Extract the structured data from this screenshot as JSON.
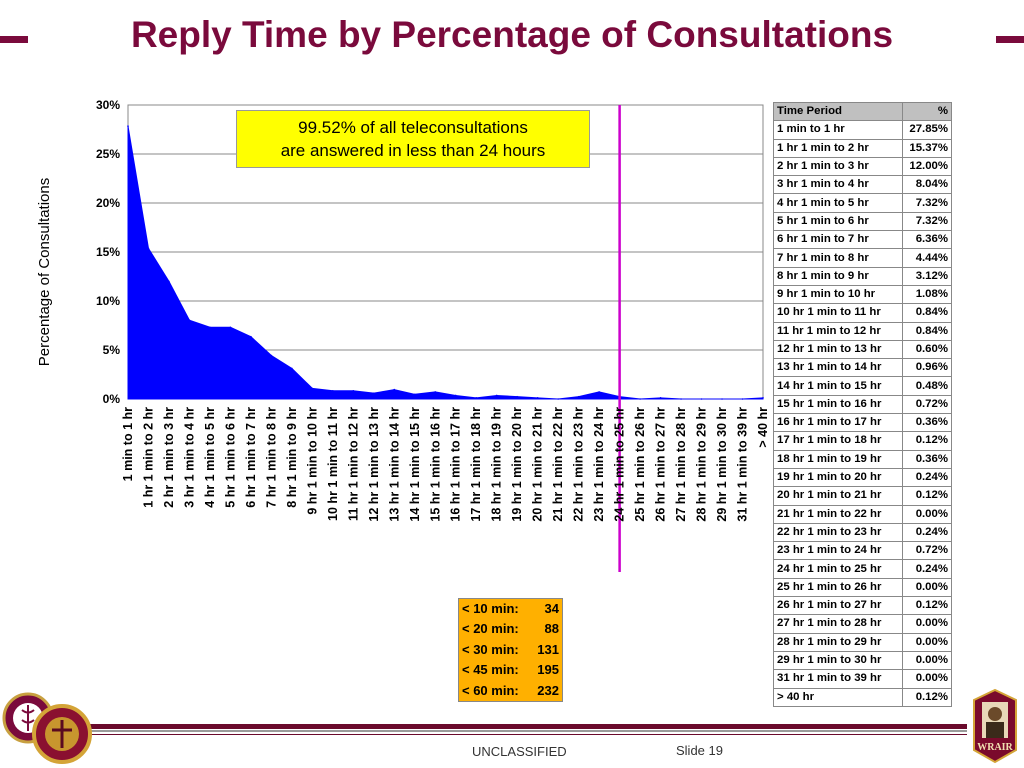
{
  "title": "Reply Time by Percentage of Consultations",
  "callout": {
    "line1": "99.52% of all teleconsultations",
    "line2": "are answered in less than 24 hours"
  },
  "chart_data": {
    "type": "area",
    "ylabel": "Percentage of Consultations",
    "ylim": [
      0,
      30
    ],
    "yticks": [
      "0%",
      "5%",
      "10%",
      "15%",
      "20%",
      "25%",
      "30%"
    ],
    "yticks_values": [
      0,
      5,
      10,
      15,
      20,
      25,
      30
    ],
    "grid": true,
    "series_color": "#0000ff",
    "marker_line": {
      "category": "24 hr 1 min to 25 hr",
      "color": "#cc00cc"
    },
    "categories": [
      "1 min to 1 hr",
      "1 hr 1 min to 2 hr",
      "2 hr 1 min to 3 hr",
      "3 hr 1 min to 4 hr",
      "4 hr 1 min to 5 hr",
      "5 hr 1 min to 6 hr",
      "6 hr 1 min to 7 hr",
      "7 hr 1 min to 8 hr",
      "8 hr 1 min to 9 hr",
      "9 hr 1 min to 10 hr",
      "10 hr 1 min to 11 hr",
      "11 hr 1 min to 12 hr",
      "12 hr 1 min to 13 hr",
      "13 hr 1 min to 14 hr",
      "14 hr 1 min to 15 hr",
      "15 hr 1 min to 16 hr",
      "16 hr 1 min to 17 hr",
      "17 hr 1 min to 18 hr",
      "18 hr 1 min to 19 hr",
      "19 hr 1 min to 20 hr",
      "20 hr 1 min to 21 hr",
      "21 hr 1 min to 22 hr",
      "22 hr 1 min to 23 hr",
      "23 hr 1 min to 24 hr",
      "24 hr 1 min to 25 hr",
      "25 hr 1 min to 26 hr",
      "26 hr 1 min to 27 hr",
      "27 hr 1 min to 28 hr",
      "28 hr 1 min to 29 hr",
      "29 hr 1 min to 30 hr",
      "31 hr 1 min to 39 hr",
      "> 40 hr"
    ],
    "values": [
      27.85,
      15.37,
      12.0,
      8.04,
      7.32,
      7.32,
      6.36,
      4.44,
      3.12,
      1.08,
      0.84,
      0.84,
      0.6,
      0.96,
      0.48,
      0.72,
      0.36,
      0.12,
      0.36,
      0.24,
      0.12,
      0.0,
      0.24,
      0.72,
      0.24,
      0.0,
      0.12,
      0.0,
      0.0,
      0.0,
      0.0,
      0.12
    ]
  },
  "table": {
    "header": {
      "period": "Time Period",
      "pct": "%"
    },
    "rows": [
      {
        "period": "1 min to 1 hr",
        "pct": "27.85%"
      },
      {
        "period": "1 hr 1 min to 2 hr",
        "pct": "15.37%"
      },
      {
        "period": "2 hr 1 min to 3 hr",
        "pct": "12.00%"
      },
      {
        "period": "3 hr 1 min to 4 hr",
        "pct": "8.04%"
      },
      {
        "period": "4 hr 1 min to 5 hr",
        "pct": "7.32%"
      },
      {
        "period": "5 hr 1 min to 6 hr",
        "pct": "7.32%"
      },
      {
        "period": "6 hr 1 min to 7 hr",
        "pct": "6.36%"
      },
      {
        "period": "7 hr 1 min to 8 hr",
        "pct": "4.44%"
      },
      {
        "period": "8 hr 1 min to 9 hr",
        "pct": "3.12%"
      },
      {
        "period": "9 hr 1 min to 10 hr",
        "pct": "1.08%"
      },
      {
        "period": "10 hr 1 min to 11 hr",
        "pct": "0.84%"
      },
      {
        "period": "11 hr 1 min to 12 hr",
        "pct": "0.84%"
      },
      {
        "period": "12 hr 1 min to 13 hr",
        "pct": "0.60%"
      },
      {
        "period": "13 hr 1 min to 14 hr",
        "pct": "0.96%"
      },
      {
        "period": "14 hr 1 min to 15 hr",
        "pct": "0.48%"
      },
      {
        "period": "15 hr 1 min to 16 hr",
        "pct": "0.72%"
      },
      {
        "period": "16 hr 1 min to 17 hr",
        "pct": "0.36%"
      },
      {
        "period": "17 hr 1 min to 18 hr",
        "pct": "0.12%"
      },
      {
        "period": "18 hr 1 min to 19 hr",
        "pct": "0.36%"
      },
      {
        "period": "19 hr 1 min to 20 hr",
        "pct": "0.24%"
      },
      {
        "period": "20 hr 1 min to 21 hr",
        "pct": "0.12%"
      },
      {
        "period": "21 hr 1 min to 22 hr",
        "pct": "0.00%"
      },
      {
        "period": "22 hr 1 min to 23 hr",
        "pct": "0.24%"
      },
      {
        "period": "23 hr 1 min to 24 hr",
        "pct": "0.72%"
      },
      {
        "period": "24 hr 1 min to 25 hr",
        "pct": "0.24%"
      },
      {
        "period": "25 hr 1 min to 26 hr",
        "pct": "0.00%"
      },
      {
        "period": "26 hr 1 min to 27 hr",
        "pct": "0.12%"
      },
      {
        "period": "27 hr 1 min to 28 hr",
        "pct": "0.00%"
      },
      {
        "period": "28 hr 1 min to 29 hr",
        "pct": "0.00%"
      },
      {
        "period": "29 hr 1 min to 30 hr",
        "pct": "0.00%"
      },
      {
        "period": "31 hr 1 min to 39 hr",
        "pct": "0.00%"
      },
      {
        "period": "> 40 hr",
        "pct": "0.12%"
      }
    ]
  },
  "minutes": [
    {
      "label": "< 10 min:",
      "value": "34"
    },
    {
      "label": "< 20 min:",
      "value": "88"
    },
    {
      "label": "< 30 min:",
      "value": "131"
    },
    {
      "label": "< 45 min:",
      "value": "195"
    },
    {
      "label": "< 60 min:",
      "value": "232"
    }
  ],
  "footer": {
    "classification": "UNCLASSIFIED",
    "slide": "Slide 19"
  },
  "logos": {
    "left": "army-medical-logo",
    "right": "wrair-logo",
    "right_text": "WRAIR"
  },
  "colors": {
    "title": "#7a0a3c",
    "callout": "#ffff00",
    "minutes_box": "#ffb000",
    "table_header": "#c0c0c0"
  }
}
